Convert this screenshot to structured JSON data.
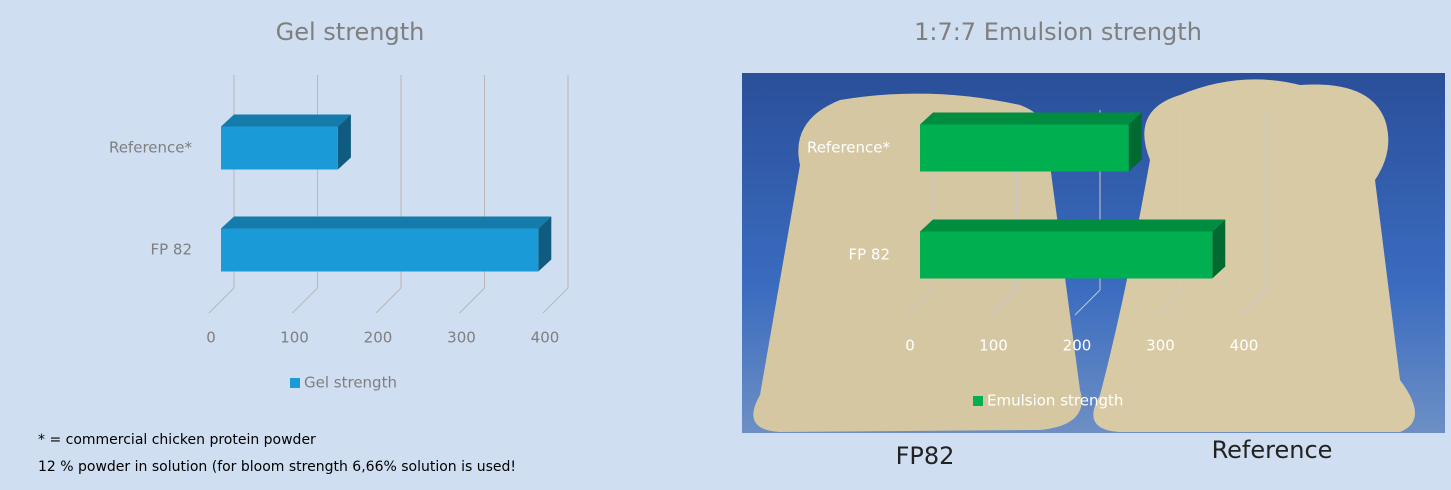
{
  "chart_data": [
    {
      "type": "bar",
      "orientation": "horizontal",
      "title": "Gel strength",
      "categories": [
        "Reference*",
        "FP 82"
      ],
      "series": [
        {
          "name": "Gel strength",
          "color": "#1a9ad6",
          "values": [
            140,
            380
          ]
        }
      ],
      "xlim": [
        0,
        400
      ],
      "xticks": [
        0,
        100,
        200,
        300,
        400
      ],
      "grid": true,
      "legend": "bottom"
    },
    {
      "type": "bar",
      "orientation": "horizontal",
      "title": "1:7:7 Emulsion strength",
      "categories": [
        "Reference*",
        "FP 82"
      ],
      "series": [
        {
          "name": "Emulsion strength",
          "color": "#00b050",
          "values": [
            250,
            350
          ]
        }
      ],
      "xlim": [
        0,
        400
      ],
      "xticks": [
        0,
        100,
        200,
        300,
        400
      ],
      "grid": true,
      "legend": "bottom"
    }
  ],
  "footnotes": [
    "* = commercial chicken protein powder",
    "12 % powder in solution (for bloom strength 6,66% solution is used!"
  ],
  "photo_labels": [
    "FP82",
    "Reference"
  ]
}
